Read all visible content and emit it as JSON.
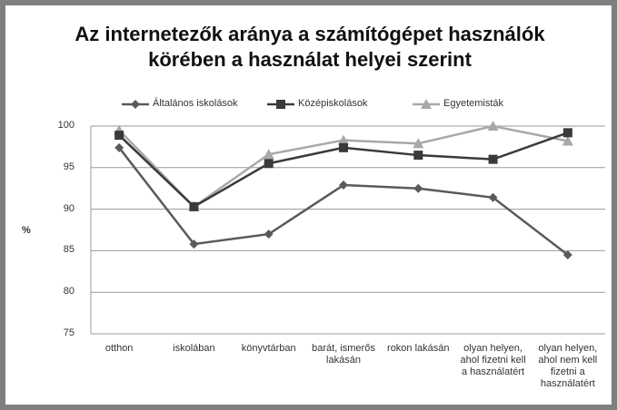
{
  "chart_data": {
    "type": "line",
    "title": "Az internetezők aránya a számítógépet használók körében a használat helyei szerint",
    "y_label": "%",
    "categories": [
      "otthon",
      "iskolában",
      "könyvtárban",
      "barát, ismerős lakásán",
      "rokon lakásán",
      "olyan helyen, ahol fizetni kell a használatért",
      "olyan helyen, ahol nem kell fizetni a használatért"
    ],
    "series": [
      {
        "name": "Általános iskolások",
        "color": "#5a5a5a",
        "marker": "diamond",
        "values": [
          97.4,
          85.8,
          87.0,
          92.9,
          92.5,
          91.4,
          84.5
        ]
      },
      {
        "name": "Középiskolások",
        "color": "#3a3a3a",
        "marker": "square",
        "values": [
          98.9,
          90.3,
          95.5,
          97.4,
          96.5,
          96.0,
          99.2
        ]
      },
      {
        "name": "Egyetemisták",
        "color": "#a8a8a8",
        "marker": "triangle",
        "values": [
          99.5,
          90.3,
          96.6,
          98.3,
          97.9,
          100,
          98.2
        ]
      }
    ],
    "ylim": [
      75,
      100
    ],
    "yticks": [
      75,
      80,
      85,
      90,
      95,
      100
    ],
    "grid": true,
    "legend": "top"
  }
}
